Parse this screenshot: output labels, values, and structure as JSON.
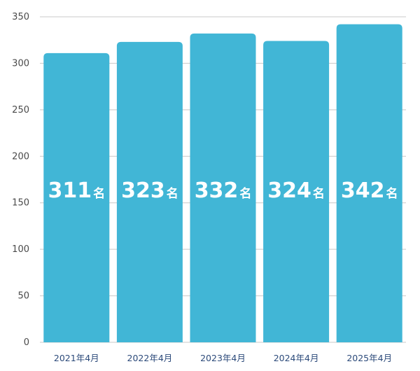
{
  "chart_data": {
    "type": "bar",
    "categories": [
      "2021年4月",
      "2022年4月",
      "2023年4月",
      "2024年4月",
      "2025年4月"
    ],
    "values": [
      311,
      323,
      332,
      324,
      342
    ],
    "value_unit": "名",
    "ylim": [
      0,
      350
    ],
    "y_ticks": [
      0,
      50,
      100,
      150,
      200,
      250,
      300,
      350
    ],
    "grid": true,
    "title": "",
    "xlabel": "",
    "ylabel": ""
  },
  "colors": {
    "bar": "#41b6d6",
    "grid": "#c8c8c8",
    "axis_text": "#4a4a4a",
    "category_text": "#2c4a7a",
    "value_text": "#ffffff"
  }
}
